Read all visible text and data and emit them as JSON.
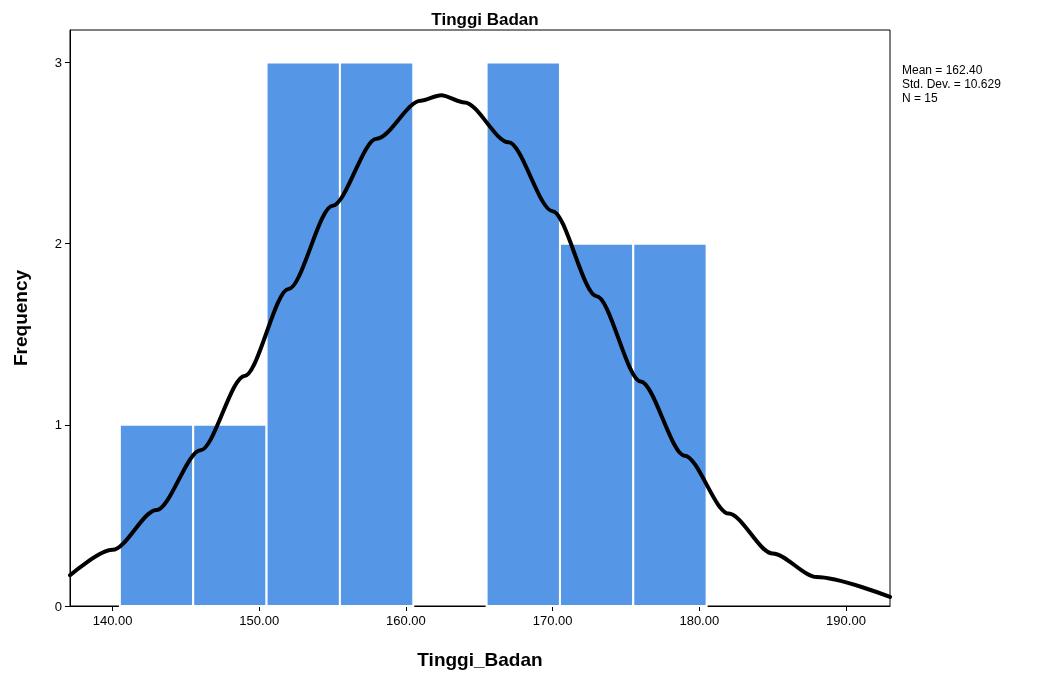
{
  "chart_data": {
    "type": "histogram",
    "title": "Tinggi Badan",
    "xlabel": "Tinggi_Badan",
    "ylabel": "Frequency",
    "bins": [
      140.5,
      145.5,
      150.5,
      155.5,
      160.5,
      165.5,
      170.5,
      175.5,
      180.5
    ],
    "series": [
      {
        "color": "#5596e6",
        "values": [
          1,
          1,
          3,
          3,
          0,
          3,
          2,
          2
        ]
      },
      {
        "type": "line",
        "color": "#000000",
        "x": [
          137.1,
          140,
          143,
          146,
          149,
          152,
          155,
          158,
          161,
          162.4,
          164,
          167,
          170,
          173,
          176,
          179,
          182,
          185,
          188,
          193
        ],
        "values": [
          0.17,
          0.31,
          0.53,
          0.86,
          1.27,
          1.75,
          2.21,
          2.58,
          2.79,
          2.82,
          2.78,
          2.56,
          2.18,
          1.71,
          1.24,
          0.83,
          0.51,
          0.29,
          0.16,
          0.05
        ]
      }
    ],
    "xlim": [
      137.1,
      193
    ],
    "xticks": [
      {
        "value": 140,
        "label": "140.00"
      },
      {
        "value": 150,
        "label": "150.00"
      },
      {
        "value": 160,
        "label": "160.00"
      },
      {
        "value": 170,
        "label": "170.00"
      },
      {
        "value": 180,
        "label": "180.00"
      },
      {
        "value": 190,
        "label": "190.00"
      }
    ],
    "ylim": [
      0,
      3.18
    ],
    "yticks": [
      0,
      1,
      2,
      3
    ],
    "grid": false,
    "marker": "none",
    "line_style": "solid",
    "annotations": [
      "Mean = 162.40",
      "Std. Dev. = 10.629",
      "N = 15"
    ]
  }
}
